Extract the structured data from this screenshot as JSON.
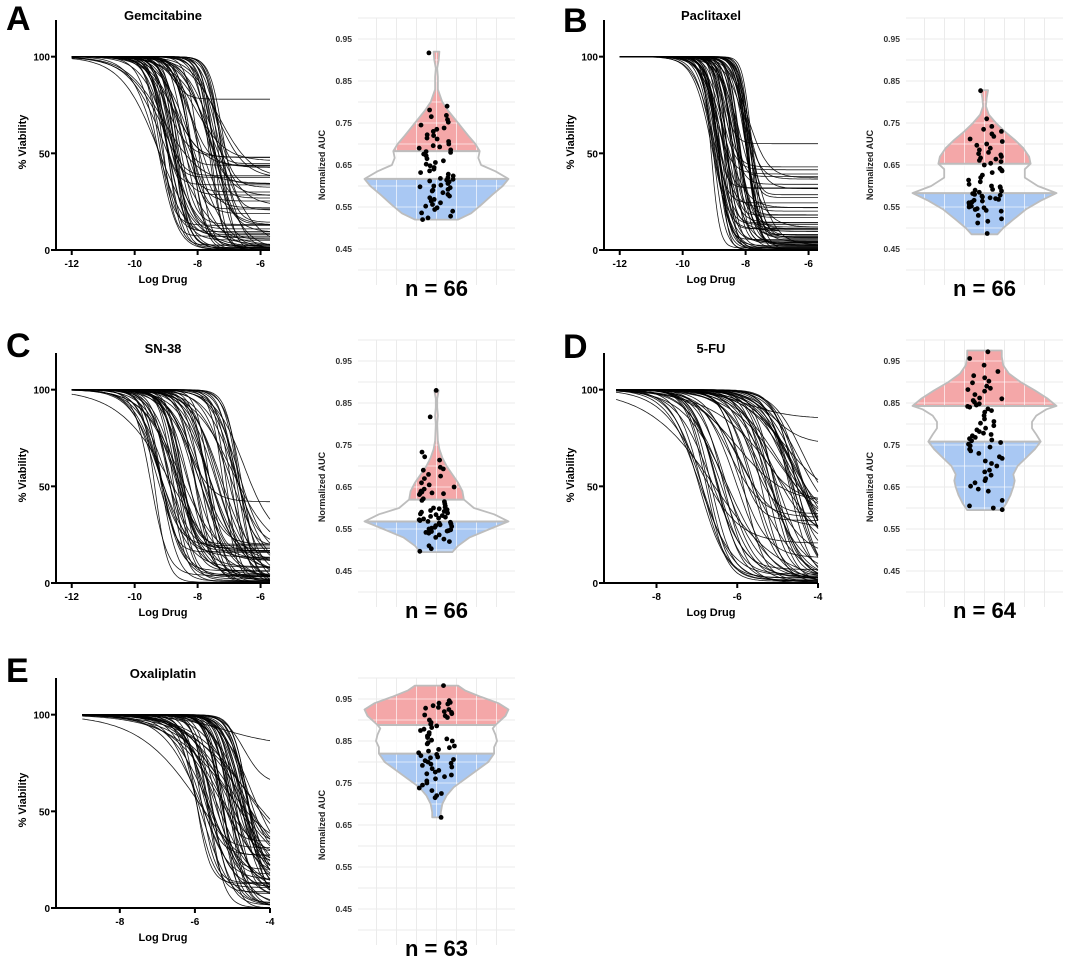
{
  "figure": {
    "panels": [
      {
        "letter": "A",
        "drug": "Gemcitabine",
        "n_label": "n = 66"
      },
      {
        "letter": "B",
        "drug": "Paclitaxel",
        "n_label": "n = 66"
      },
      {
        "letter": "C",
        "drug": "SN-38",
        "n_label": "n = 66"
      },
      {
        "letter": "D",
        "drug": "5-FU",
        "n_label": "n = 64"
      },
      {
        "letter": "E",
        "drug": "Oxaliplatin",
        "n_label": "n = 63"
      }
    ]
  },
  "colors": {
    "upper_tertile": "#f4a7a8",
    "lower_tertile": "#a9c8f3",
    "violin_outline": "#bdbdbd",
    "grid": "#ebebeb",
    "curve": "#000000"
  },
  "chart_data": [
    {
      "type": "line",
      "panel": "A",
      "title": "Gemcitabine",
      "xlabel": "Log Drug",
      "ylabel": "% Viability",
      "xlim": [
        -12.5,
        -5.7
      ],
      "ylim": [
        0,
        120
      ],
      "xticks": [
        -12,
        -10,
        -8,
        -6
      ],
      "yticks": [
        0,
        50,
        100
      ],
      "x_start": -12,
      "curve_count": 66,
      "ic50_range": [
        -9.3,
        -7.2
      ],
      "bottom_range": [
        0,
        48
      ],
      "hill_range": [
        0.6,
        2.5
      ],
      "notable_plateaus": [
        78,
        48,
        37,
        30
      ]
    },
    {
      "type": "scatter",
      "subtype": "violin",
      "panel": "A",
      "ylabel": "Normalized AUC",
      "ylim": [
        0.4,
        1.0
      ],
      "yticks": [
        0.45,
        0.55,
        0.65,
        0.75,
        0.85,
        0.95
      ],
      "n": 66,
      "min": 0.52,
      "max": 0.92,
      "lower_tertile_cut": 0.617,
      "upper_tertile_cut": 0.683,
      "density_profile": [
        [
          0.52,
          0.3
        ],
        [
          0.535,
          0.48
        ],
        [
          0.555,
          0.62
        ],
        [
          0.58,
          0.78
        ],
        [
          0.6,
          0.92
        ],
        [
          0.617,
          1.0
        ],
        [
          0.635,
          0.82
        ],
        [
          0.65,
          0.62
        ],
        [
          0.667,
          0.58
        ],
        [
          0.683,
          0.6
        ],
        [
          0.7,
          0.54
        ],
        [
          0.72,
          0.44
        ],
        [
          0.75,
          0.3
        ],
        [
          0.78,
          0.16
        ],
        [
          0.8,
          0.08
        ],
        [
          0.83,
          0.02
        ],
        [
          0.86,
          0.02
        ],
        [
          0.88,
          0.01
        ],
        [
          0.9,
          0.03
        ],
        [
          0.92,
          0.04
        ]
      ],
      "points": [
        0.917,
        0.79,
        0.781,
        0.768,
        0.765,
        0.758,
        0.752,
        0.745,
        0.738,
        0.735,
        0.73,
        0.722,
        0.72,
        0.714,
        0.712,
        0.706,
        0.7,
        0.696,
        0.693,
        0.69,
        0.686,
        0.682,
        0.68,
        0.676,
        0.672,
        0.665,
        0.66,
        0.656,
        0.652,
        0.648,
        0.644,
        0.64,
        0.636,
        0.632,
        0.628,
        0.624,
        0.62,
        0.618,
        0.616,
        0.614,
        0.612,
        0.61,
        0.606,
        0.602,
        0.6,
        0.598,
        0.596,
        0.592,
        0.59,
        0.588,
        0.584,
        0.58,
        0.576,
        0.572,
        0.568,
        0.564,
        0.56,
        0.556,
        0.552,
        0.548,
        0.544,
        0.54,
        0.536,
        0.528,
        0.524,
        0.52
      ]
    },
    {
      "type": "line",
      "panel": "B",
      "title": "Paclitaxel",
      "xlabel": "Log Drug",
      "ylabel": "% Viability",
      "xlim": [
        -12.5,
        -5.7
      ],
      "ylim": [
        0,
        120
      ],
      "xticks": [
        -12,
        -10,
        -8,
        -6
      ],
      "yticks": [
        0,
        50,
        100
      ],
      "x_start": -12,
      "curve_count": 66,
      "ic50_range": [
        -9.1,
        -7.8
      ],
      "bottom_range": [
        0,
        45
      ],
      "hill_range": [
        1.2,
        3.5
      ],
      "notable_plateaus": [
        55,
        43,
        38,
        34
      ]
    },
    {
      "type": "scatter",
      "subtype": "violin",
      "panel": "B",
      "ylabel": "Normalized AUC",
      "ylim": [
        0.4,
        1.0
      ],
      "yticks": [
        0.45,
        0.55,
        0.65,
        0.75,
        0.85,
        0.95
      ],
      "n": 66,
      "min": 0.485,
      "max": 0.828,
      "lower_tertile_cut": 0.583,
      "upper_tertile_cut": 0.653,
      "density_profile": [
        [
          0.485,
          0.18
        ],
        [
          0.5,
          0.26
        ],
        [
          0.52,
          0.4
        ],
        [
          0.545,
          0.58
        ],
        [
          0.565,
          0.78
        ],
        [
          0.583,
          1.0
        ],
        [
          0.6,
          0.74
        ],
        [
          0.62,
          0.56
        ],
        [
          0.64,
          0.56
        ],
        [
          0.653,
          0.64
        ],
        [
          0.67,
          0.62
        ],
        [
          0.69,
          0.54
        ],
        [
          0.71,
          0.42
        ],
        [
          0.73,
          0.28
        ],
        [
          0.75,
          0.16
        ],
        [
          0.77,
          0.06
        ],
        [
          0.79,
          0.02
        ],
        [
          0.81,
          0.03
        ],
        [
          0.828,
          0.05
        ]
      ],
      "points": [
        0.827,
        0.76,
        0.742,
        0.735,
        0.73,
        0.724,
        0.718,
        0.712,
        0.706,
        0.7,
        0.697,
        0.69,
        0.686,
        0.68,
        0.677,
        0.674,
        0.67,
        0.667,
        0.664,
        0.661,
        0.658,
        0.654,
        0.65,
        0.642,
        0.638,
        0.636,
        0.632,
        0.626,
        0.62,
        0.614,
        0.61,
        0.604,
        0.6,
        0.598,
        0.596,
        0.592,
        0.59,
        0.588,
        0.585,
        0.582,
        0.58,
        0.578,
        0.576,
        0.574,
        0.572,
        0.57,
        0.568,
        0.566,
        0.564,
        0.562,
        0.56,
        0.558,
        0.556,
        0.554,
        0.552,
        0.55,
        0.548,
        0.546,
        0.544,
        0.542,
        0.54,
        0.53,
        0.522,
        0.516,
        0.512,
        0.487
      ]
    },
    {
      "type": "line",
      "panel": "C",
      "title": "SN-38",
      "xlabel": "Log Drug",
      "ylabel": "% Viability",
      "xlim": [
        -12.5,
        -5.7
      ],
      "ylim": [
        0,
        120
      ],
      "xticks": [
        -12,
        -10,
        -8,
        -6
      ],
      "yticks": [
        0,
        50,
        100
      ],
      "x_start": -12,
      "curve_count": 66,
      "ic50_range": [
        -9.5,
        -6.5
      ],
      "bottom_range": [
        0,
        22
      ],
      "hill_range": [
        0.5,
        2.2
      ],
      "notable_plateaus": [
        42,
        20,
        18
      ]
    },
    {
      "type": "scatter",
      "subtype": "violin",
      "panel": "C",
      "ylabel": "Normalized AUC",
      "ylim": [
        0.4,
        1.0
      ],
      "yticks": [
        0.45,
        0.55,
        0.65,
        0.75,
        0.85,
        0.95
      ],
      "n": 66,
      "min": 0.495,
      "max": 0.88,
      "lower_tertile_cut": 0.568,
      "upper_tertile_cut": 0.62,
      "density_profile": [
        [
          0.495,
          0.22
        ],
        [
          0.51,
          0.3
        ],
        [
          0.53,
          0.46
        ],
        [
          0.55,
          0.74
        ],
        [
          0.568,
          1.0
        ],
        [
          0.585,
          0.8
        ],
        [
          0.6,
          0.52
        ],
        [
          0.62,
          0.38
        ],
        [
          0.64,
          0.36
        ],
        [
          0.66,
          0.3
        ],
        [
          0.68,
          0.22
        ],
        [
          0.7,
          0.14
        ],
        [
          0.72,
          0.08
        ],
        [
          0.74,
          0.04
        ],
        [
          0.76,
          0.02
        ],
        [
          0.8,
          0.01
        ],
        [
          0.82,
          0.02
        ],
        [
          0.84,
          0.01
        ],
        [
          0.86,
          0.01
        ],
        [
          0.88,
          0.03
        ]
      ],
      "points": [
        0.88,
        0.817,
        0.733,
        0.722,
        0.714,
        0.697,
        0.693,
        0.69,
        0.68,
        0.676,
        0.67,
        0.66,
        0.655,
        0.65,
        0.645,
        0.64,
        0.638,
        0.636,
        0.635,
        0.634,
        0.632,
        0.622,
        0.618,
        0.615,
        0.61,
        0.605,
        0.602,
        0.6,
        0.598,
        0.596,
        0.594,
        0.592,
        0.59,
        0.588,
        0.586,
        0.584,
        0.582,
        0.58,
        0.578,
        0.576,
        0.574,
        0.572,
        0.57,
        0.568,
        0.566,
        0.564,
        0.562,
        0.56,
        0.558,
        0.556,
        0.554,
        0.552,
        0.55,
        0.548,
        0.546,
        0.545,
        0.544,
        0.542,
        0.54,
        0.536,
        0.53,
        0.526,
        0.52,
        0.51,
        0.503,
        0.497
      ]
    },
    {
      "type": "line",
      "panel": "D",
      "title": "5-FU",
      "xlabel": "Log Drug",
      "ylabel": "% Viability",
      "xlim": [
        -9.3,
        -4
      ],
      "ylim": [
        0,
        120
      ],
      "xticks": [
        -8,
        -6,
        -4
      ],
      "yticks": [
        0,
        50,
        100
      ],
      "x_start": -9,
      "curve_count": 64,
      "ic50_range": [
        -7.0,
        -4.3
      ],
      "bottom_range": [
        0,
        45
      ],
      "hill_range": [
        0.5,
        1.8
      ],
      "notable_plateaus": [
        85,
        72,
        42,
        25
      ]
    },
    {
      "type": "scatter",
      "subtype": "violin",
      "panel": "D",
      "ylabel": "Normalized AUC",
      "ylim": [
        0.4,
        1.0
      ],
      "yticks": [
        0.45,
        0.55,
        0.65,
        0.75,
        0.85,
        0.95
      ],
      "n": 64,
      "min": 0.595,
      "max": 0.975,
      "lower_tertile_cut": 0.758,
      "upper_tertile_cut": 0.843,
      "density_profile": [
        [
          0.595,
          0.24
        ],
        [
          0.61,
          0.3
        ],
        [
          0.63,
          0.36
        ],
        [
          0.65,
          0.4
        ],
        [
          0.665,
          0.42
        ],
        [
          0.68,
          0.4
        ],
        [
          0.7,
          0.46
        ],
        [
          0.72,
          0.58
        ],
        [
          0.74,
          0.7
        ],
        [
          0.758,
          0.78
        ],
        [
          0.775,
          0.72
        ],
        [
          0.79,
          0.66
        ],
        [
          0.805,
          0.66
        ],
        [
          0.82,
          0.72
        ],
        [
          0.835,
          0.86
        ],
        [
          0.843,
          1.0
        ],
        [
          0.86,
          0.88
        ],
        [
          0.88,
          0.7
        ],
        [
          0.9,
          0.5
        ],
        [
          0.92,
          0.34
        ],
        [
          0.94,
          0.26
        ],
        [
          0.96,
          0.24
        ],
        [
          0.975,
          0.24
        ]
      ],
      "points": [
        0.972,
        0.956,
        0.94,
        0.925,
        0.915,
        0.91,
        0.902,
        0.898,
        0.89,
        0.885,
        0.882,
        0.878,
        0.87,
        0.862,
        0.86,
        0.856,
        0.852,
        0.848,
        0.845,
        0.842,
        0.84,
        0.836,
        0.832,
        0.828,
        0.82,
        0.812,
        0.806,
        0.802,
        0.796,
        0.79,
        0.786,
        0.782,
        0.778,
        0.775,
        0.772,
        0.768,
        0.765,
        0.762,
        0.76,
        0.756,
        0.752,
        0.748,
        0.745,
        0.74,
        0.736,
        0.73,
        0.722,
        0.718,
        0.712,
        0.706,
        0.7,
        0.69,
        0.686,
        0.678,
        0.67,
        0.665,
        0.66,
        0.652,
        0.645,
        0.64,
        0.618,
        0.605,
        0.6,
        0.596
      ]
    },
    {
      "type": "line",
      "panel": "E",
      "title": "Oxaliplatin",
      "xlabel": "Log Drug",
      "ylabel": "% Viability",
      "xlim": [
        -9.7,
        -4
      ],
      "ylim": [
        0,
        120
      ],
      "xticks": [
        -8,
        -6,
        -4
      ],
      "yticks": [
        0,
        50,
        100
      ],
      "x_start": -9,
      "curve_count": 63,
      "ic50_range": [
        -6.0,
        -4.5
      ],
      "bottom_range": [
        0,
        35
      ],
      "hill_range": [
        0.5,
        2.5
      ],
      "notable_plateaus": [
        84,
        64,
        20
      ]
    },
    {
      "type": "scatter",
      "subtype": "violin",
      "panel": "E",
      "ylabel": "Normalized AUC",
      "ylim": [
        0.4,
        1.0
      ],
      "yticks": [
        0.45,
        0.55,
        0.65,
        0.75,
        0.85,
        0.95
      ],
      "n": 63,
      "min": 0.668,
      "max": 0.982,
      "lower_tertile_cut": 0.82,
      "upper_tertile_cut": 0.888,
      "density_profile": [
        [
          0.668,
          0.06
        ],
        [
          0.68,
          0.06
        ],
        [
          0.7,
          0.08
        ],
        [
          0.72,
          0.14
        ],
        [
          0.74,
          0.24
        ],
        [
          0.76,
          0.4
        ],
        [
          0.78,
          0.56
        ],
        [
          0.8,
          0.72
        ],
        [
          0.82,
          0.8
        ],
        [
          0.835,
          0.8
        ],
        [
          0.85,
          0.84
        ],
        [
          0.865,
          0.82
        ],
        [
          0.88,
          0.78
        ],
        [
          0.888,
          0.82
        ],
        [
          0.91,
          0.96
        ],
        [
          0.925,
          1.0
        ],
        [
          0.94,
          0.86
        ],
        [
          0.955,
          0.62
        ],
        [
          0.97,
          0.4
        ],
        [
          0.982,
          0.3
        ]
      ],
      "points": [
        0.982,
        0.946,
        0.942,
        0.94,
        0.938,
        0.934,
        0.93,
        0.928,
        0.925,
        0.92,
        0.918,
        0.915,
        0.912,
        0.91,
        0.906,
        0.9,
        0.894,
        0.89,
        0.886,
        0.882,
        0.878,
        0.875,
        0.87,
        0.866,
        0.862,
        0.858,
        0.855,
        0.852,
        0.85,
        0.846,
        0.843,
        0.838,
        0.834,
        0.83,
        0.826,
        0.822,
        0.818,
        0.815,
        0.812,
        0.81,
        0.806,
        0.803,
        0.8,
        0.797,
        0.795,
        0.792,
        0.788,
        0.784,
        0.78,
        0.776,
        0.772,
        0.769,
        0.765,
        0.76,
        0.755,
        0.75,
        0.745,
        0.738,
        0.732,
        0.725,
        0.72,
        0.715,
        0.668
      ]
    }
  ]
}
